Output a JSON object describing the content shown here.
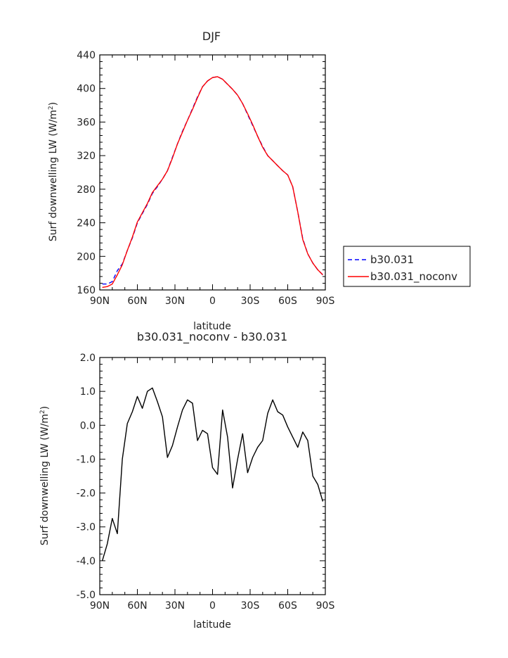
{
  "chart_data": [
    {
      "type": "line",
      "title": "DJF",
      "xlabel": "latitude",
      "ylabel": "Surf downwelling LW (W/m",
      "ylabel_sup": "2",
      "ylabel_end": ")",
      "xlim": [
        90,
        -90
      ],
      "ylim": [
        160,
        440
      ],
      "xtick_values": [
        90,
        60,
        30,
        0,
        -30,
        -60,
        -90
      ],
      "xticks": [
        "90N",
        "60N",
        "30N",
        "0",
        "30S",
        "60S",
        "90S"
      ],
      "ytick_values": [
        160,
        200,
        240,
        280,
        320,
        360,
        400,
        440
      ],
      "yticks": [
        "160",
        "200",
        "240",
        "280",
        "320",
        "360",
        "400",
        "440"
      ],
      "legend_position": "right",
      "series": [
        {
          "name": "b30.031",
          "color": "#0000ff",
          "dash": "dashed",
          "x": [
            88,
            84,
            80,
            76,
            72,
            68,
            64,
            60,
            56,
            52,
            48,
            44,
            40,
            36,
            32,
            28,
            24,
            20,
            16,
            12,
            8,
            4,
            0,
            -4,
            -8,
            -12,
            -16,
            -20,
            -24,
            -28,
            -32,
            -36,
            -40,
            -44,
            -48,
            -52,
            -56,
            -60,
            -64,
            -68,
            -72,
            -76,
            -80,
            -84,
            -88
          ],
          "y": [
            167,
            167,
            170,
            183,
            191,
            207,
            222,
            240,
            251,
            262,
            275,
            283,
            292,
            302,
            318,
            334,
            349,
            362,
            376,
            390,
            402,
            409,
            413,
            414,
            411,
            405,
            399,
            392,
            382,
            369,
            356,
            343,
            331,
            320,
            314,
            308,
            302,
            297,
            283,
            253,
            221,
            203,
            192,
            184,
            178
          ]
        },
        {
          "name": "b30.031_noconv",
          "color": "#ff0000",
          "dash": "solid",
          "x": [
            88,
            84,
            80,
            76,
            72,
            68,
            64,
            60,
            56,
            52,
            48,
            44,
            40,
            36,
            32,
            28,
            24,
            20,
            16,
            12,
            8,
            4,
            0,
            -4,
            -8,
            -12,
            -16,
            -20,
            -24,
            -28,
            -32,
            -36,
            -40,
            -44,
            -48,
            -52,
            -56,
            -60,
            -64,
            -68,
            -72,
            -76,
            -80,
            -84,
            -88
          ],
          "y": [
            163,
            164,
            167,
            178,
            190,
            207,
            223,
            241,
            252,
            263,
            276,
            284,
            292,
            302,
            317,
            334,
            348,
            362,
            375,
            389,
            402,
            409,
            413,
            414,
            411,
            405,
            399,
            392,
            382,
            370,
            357,
            343,
            330,
            320,
            314,
            308,
            302,
            297,
            283,
            253,
            220,
            203,
            192,
            184,
            178
          ]
        }
      ]
    },
    {
      "type": "line",
      "title": "b30.031_noconv - b30.031",
      "xlabel": "latitude",
      "ylabel": "Surf downwelling LW (W/m",
      "ylabel_sup": "2",
      "ylabel_end": ")",
      "xlim": [
        90,
        -90
      ],
      "ylim": [
        -5,
        2
      ],
      "xtick_values": [
        90,
        60,
        30,
        0,
        -30,
        -60,
        -90
      ],
      "xticks": [
        "90N",
        "60N",
        "30N",
        "0",
        "30S",
        "60S",
        "90S"
      ],
      "ytick_values": [
        -5,
        -4,
        -3,
        -2,
        -1,
        0,
        1,
        2
      ],
      "yticks": [
        "-5.0",
        "-4.0",
        "-3.0",
        "-2.0",
        "-1.0",
        "0.0",
        "1.0",
        "2.0"
      ],
      "series": [
        {
          "color": "#000000",
          "dash": "solid",
          "x": [
            88,
            84,
            80,
            76,
            72,
            68,
            64,
            60,
            56,
            52,
            48,
            44,
            40,
            36,
            32,
            28,
            24,
            20,
            16,
            12,
            8,
            4,
            0,
            -4,
            -8,
            -12,
            -16,
            -20,
            -24,
            -28,
            -32,
            -36,
            -40,
            -44,
            -48,
            -52,
            -56,
            -60,
            -64,
            -68,
            -72,
            -76,
            -80,
            -84,
            -88
          ],
          "y": [
            -4.0,
            -3.5,
            -2.75,
            -3.2,
            -1.0,
            0.05,
            0.4,
            0.85,
            0.5,
            1.0,
            1.1,
            0.7,
            0.25,
            -0.95,
            -0.6,
            -0.05,
            0.45,
            0.75,
            0.65,
            -0.45,
            -0.15,
            -0.25,
            -1.25,
            -1.45,
            0.45,
            -0.35,
            -1.85,
            -1.0,
            -0.25,
            -1.4,
            -0.95,
            -0.65,
            -0.45,
            0.35,
            0.75,
            0.4,
            0.3,
            -0.05,
            -0.35,
            -0.65,
            -0.2,
            -0.45,
            -1.5,
            -1.75,
            -2.25
          ]
        }
      ]
    }
  ]
}
